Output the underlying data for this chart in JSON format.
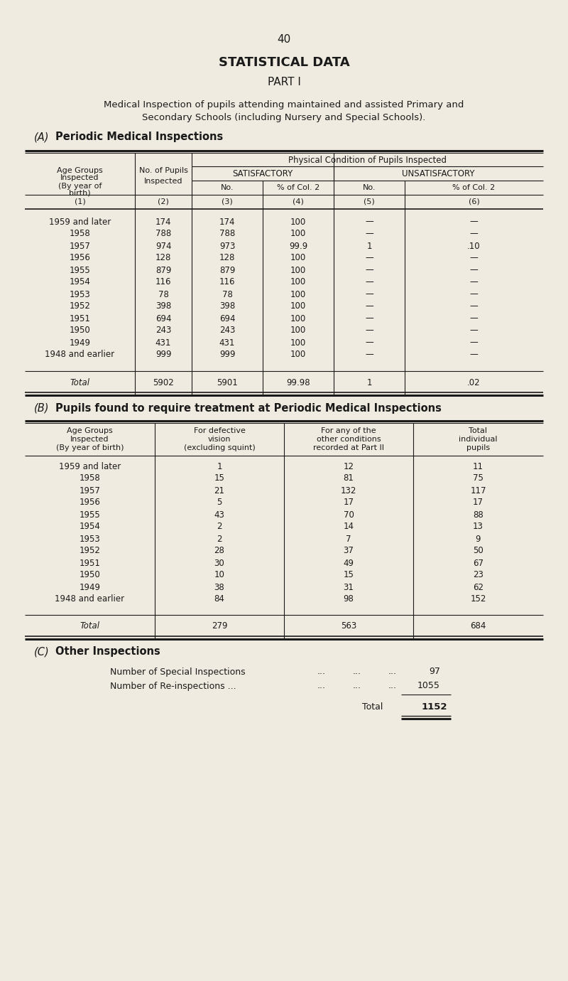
{
  "bg_color": "#f0ebe0",
  "text_color": "#1a1a1a",
  "page_number": "40",
  "main_title": "STATISTICAL DATA",
  "sub_title": "PART I",
  "intro_line1": "Medical Inspection of pupils attending maintained and assisted Primary and",
  "intro_line2": "Secondary Schools (including Nursery and Special Schools).",
  "section_a_label": "(A)",
  "section_a_text": "Periodic Medical Inspections",
  "table_a_rows": [
    [
      "1959 and later",
      "174",
      "174",
      "100",
      "—",
      "—"
    ],
    [
      "1958",
      "788",
      "788",
      "100",
      "—",
      "—"
    ],
    [
      "1957",
      "974",
      "973",
      "99.9",
      "1",
      ".10"
    ],
    [
      "1956",
      "128",
      "128",
      "100",
      "—",
      "—"
    ],
    [
      "1955",
      "879",
      "879",
      "100",
      "—",
      "—"
    ],
    [
      "1954",
      "116",
      "116",
      "100",
      "—",
      "—"
    ],
    [
      "1953",
      "78",
      "78",
      "100",
      "—",
      "—"
    ],
    [
      "1952",
      "398",
      "398",
      "100",
      "—",
      "—"
    ],
    [
      "1951",
      "694",
      "694",
      "100",
      "—",
      "—"
    ],
    [
      "1950",
      "243",
      "243",
      "100",
      "—",
      "—"
    ],
    [
      "1949",
      "431",
      "431",
      "100",
      "—",
      "—"
    ],
    [
      "1948 and earlier",
      "999",
      "999",
      "100",
      "—",
      "—"
    ]
  ],
  "table_a_total": [
    "Total",
    "5902",
    "5901",
    "99.98",
    "1",
    ".02"
  ],
  "section_b_label": "(B)",
  "section_b_text": "Pupils found to require treatment at Periodic Medical Inspections",
  "table_b_rows": [
    [
      "1959 and later",
      "1",
      "12",
      "11"
    ],
    [
      "1958",
      "15",
      "81",
      "75"
    ],
    [
      "1957",
      "21",
      "132",
      "117"
    ],
    [
      "1956",
      "5",
      "17",
      "17"
    ],
    [
      "1955",
      "43",
      "70",
      "88"
    ],
    [
      "1954",
      "2",
      "14",
      "13"
    ],
    [
      "1953",
      "2",
      "7",
      "9"
    ],
    [
      "1952",
      "28",
      "37",
      "50"
    ],
    [
      "1951",
      "30",
      "49",
      "67"
    ],
    [
      "1950",
      "10",
      "15",
      "23"
    ],
    [
      "1949",
      "38",
      "31",
      "62"
    ],
    [
      "1948 and earlier",
      "84",
      "98",
      "152"
    ]
  ],
  "table_b_total": [
    "Total",
    "279",
    "563",
    "684"
  ],
  "section_c_label": "(C)",
  "section_c_text": "Other Inspections",
  "special_label": "Number of Special Inspections",
  "special_value": "97",
  "reinspect_label": "Number of Re-inspections ...",
  "reinspect_value": "1055",
  "c_total_label": "Total",
  "c_total_value": "1152"
}
